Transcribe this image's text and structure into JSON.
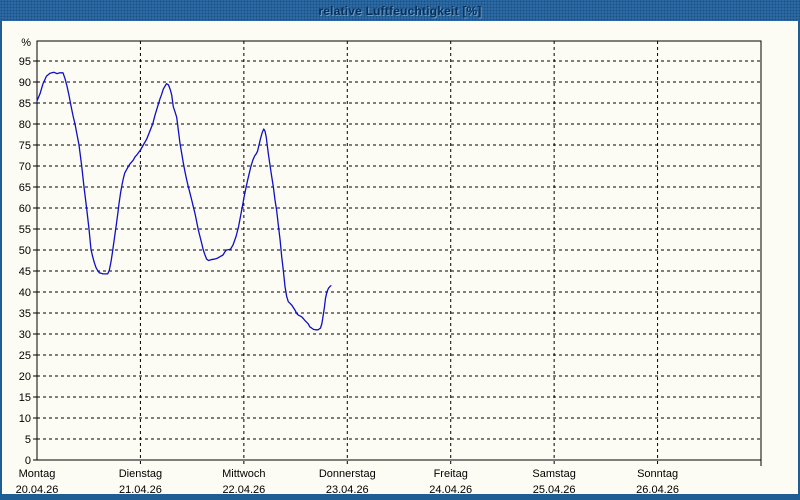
{
  "window": {
    "title": "relative Luftfeuchtigkeit [%]",
    "colors": {
      "titlebar_bg": "#2c6aa5",
      "titlebar_text": "#06305c",
      "frame": "#1e5e95",
      "content_bg": "#fcfcf4",
      "grid": "#000000",
      "axis": "#000000",
      "series_line": "#0f10c5"
    }
  },
  "chart_data": {
    "type": "line",
    "title": "relative Luftfeuchtigkeit [%]",
    "ylabel": "%",
    "grid": "dashed",
    "legend": "none",
    "y_axis": {
      "unit": "%",
      "axis_min": 0,
      "axis_max": 100,
      "tick_step": 5,
      "ticks": [
        0,
        5,
        10,
        15,
        20,
        25,
        30,
        35,
        40,
        45,
        50,
        55,
        60,
        65,
        70,
        75,
        80,
        85,
        90,
        95
      ]
    },
    "x_axis": {
      "span_days": 7,
      "days": [
        {
          "name": "Montag",
          "date": "20.04.26"
        },
        {
          "name": "Dienstag",
          "date": "21.04.26"
        },
        {
          "name": "Mittwoch",
          "date": "22.04.26"
        },
        {
          "name": "Donnerstag",
          "date": "23.04.26"
        },
        {
          "name": "Freitag",
          "date": "24.04.26"
        },
        {
          "name": "Samstag",
          "date": "25.04.26"
        },
        {
          "name": "Sonntag",
          "date": "26.04.26"
        }
      ]
    },
    "series": [
      {
        "name": "relative Luftfeuchtigkeit",
        "color": "#0f10c5",
        "x_unit": "days_since_monday",
        "points": [
          [
            0.0,
            85.5
          ],
          [
            0.029,
            87.2
          ],
          [
            0.058,
            89.6
          ],
          [
            0.092,
            91.4
          ],
          [
            0.126,
            92.1
          ],
          [
            0.164,
            92.3
          ],
          [
            0.193,
            92.0
          ],
          [
            0.222,
            92.2
          ],
          [
            0.251,
            92.2
          ],
          [
            0.271,
            90.8
          ],
          [
            0.29,
            89.0
          ],
          [
            0.309,
            86.8
          ],
          [
            0.329,
            84.3
          ],
          [
            0.348,
            82.0
          ],
          [
            0.367,
            80.0
          ],
          [
            0.387,
            77.5
          ],
          [
            0.406,
            75.0
          ],
          [
            0.432,
            70.0
          ],
          [
            0.454,
            65.0
          ],
          [
            0.48,
            60.0
          ],
          [
            0.503,
            55.0
          ],
          [
            0.522,
            50.1
          ],
          [
            0.539,
            48.4
          ],
          [
            0.554,
            47.0
          ],
          [
            0.57,
            45.8
          ],
          [
            0.587,
            45.1
          ],
          [
            0.602,
            44.6
          ],
          [
            0.638,
            44.3
          ],
          [
            0.684,
            44.3
          ],
          [
            0.699,
            45.2
          ],
          [
            0.715,
            47.2
          ],
          [
            0.728,
            49.2
          ],
          [
            0.742,
            51.6
          ],
          [
            0.754,
            53.8
          ],
          [
            0.767,
            56.0
          ],
          [
            0.78,
            58.5
          ],
          [
            0.793,
            61.0
          ],
          [
            0.807,
            63.5
          ],
          [
            0.822,
            65.5
          ],
          [
            0.834,
            67.0
          ],
          [
            0.848,
            68.3
          ],
          [
            0.867,
            69.2
          ],
          [
            0.886,
            70.0
          ],
          [
            0.899,
            70.5
          ],
          [
            0.931,
            71.4
          ],
          [
            0.948,
            72.2
          ],
          [
            0.964,
            72.6
          ],
          [
            0.981,
            73.2
          ],
          [
            1.001,
            73.8
          ],
          [
            1.028,
            75.0
          ],
          [
            1.061,
            76.4
          ],
          [
            1.093,
            78.4
          ],
          [
            1.119,
            80.0
          ],
          [
            1.141,
            82.1
          ],
          [
            1.173,
            84.7
          ],
          [
            1.189,
            86.0
          ],
          [
            1.206,
            87.1
          ],
          [
            1.221,
            88.3
          ],
          [
            1.238,
            89.0
          ],
          [
            1.252,
            89.6
          ],
          [
            1.271,
            89.3
          ],
          [
            1.291,
            88.0
          ],
          [
            1.302,
            86.9
          ],
          [
            1.318,
            84.1
          ],
          [
            1.334,
            82.9
          ],
          [
            1.351,
            81.6
          ],
          [
            1.366,
            78.6
          ],
          [
            1.383,
            75.4
          ],
          [
            1.399,
            73.0
          ],
          [
            1.415,
            70.6
          ],
          [
            1.431,
            68.6
          ],
          [
            1.447,
            66.7
          ],
          [
            1.463,
            65.1
          ],
          [
            1.479,
            63.5
          ],
          [
            1.496,
            61.9
          ],
          [
            1.511,
            60.3
          ],
          [
            1.528,
            58.7
          ],
          [
            1.544,
            56.7
          ],
          [
            1.56,
            54.8
          ],
          [
            1.576,
            53.2
          ],
          [
            1.592,
            51.6
          ],
          [
            1.608,
            50.0
          ],
          [
            1.624,
            48.8
          ],
          [
            1.641,
            47.8
          ],
          [
            1.658,
            47.5
          ],
          [
            1.682,
            47.7
          ],
          [
            1.711,
            47.8
          ],
          [
            1.74,
            48.0
          ],
          [
            1.769,
            48.4
          ],
          [
            1.798,
            48.8
          ],
          [
            1.818,
            49.6
          ],
          [
            1.832,
            50.0
          ],
          [
            1.871,
            50.2
          ],
          [
            1.895,
            51.2
          ],
          [
            1.924,
            53.2
          ],
          [
            1.948,
            55.5
          ],
          [
            1.968,
            58.0
          ],
          [
            1.987,
            60.5
          ],
          [
            2.001,
            62.5
          ],
          [
            2.018,
            64.5
          ],
          [
            2.035,
            66.5
          ],
          [
            2.055,
            68.5
          ],
          [
            2.069,
            70.0
          ],
          [
            2.088,
            71.5
          ],
          [
            2.105,
            72.4
          ],
          [
            2.117,
            72.8
          ],
          [
            2.132,
            73.5
          ],
          [
            2.146,
            75.0
          ],
          [
            2.161,
            76.5
          ],
          [
            2.175,
            77.8
          ],
          [
            2.192,
            78.8
          ],
          [
            2.204,
            78.3
          ],
          [
            2.217,
            76.8
          ],
          [
            2.224,
            75.4
          ],
          [
            2.236,
            73.0
          ],
          [
            2.253,
            70.2
          ],
          [
            2.269,
            67.5
          ],
          [
            2.285,
            65.1
          ],
          [
            2.301,
            61.9
          ],
          [
            2.317,
            59.5
          ],
          [
            2.333,
            56.0
          ],
          [
            2.35,
            52.4
          ],
          [
            2.366,
            48.4
          ],
          [
            2.381,
            45.2
          ],
          [
            2.398,
            41.3
          ],
          [
            2.414,
            38.9
          ],
          [
            2.43,
            37.7
          ],
          [
            2.446,
            37.3
          ],
          [
            2.463,
            36.9
          ],
          [
            2.494,
            35.7
          ],
          [
            2.511,
            34.9
          ],
          [
            2.526,
            34.5
          ],
          [
            2.559,
            34.1
          ],
          [
            2.575,
            33.7
          ],
          [
            2.591,
            33.2
          ],
          [
            2.623,
            32.4
          ],
          [
            2.639,
            31.7
          ],
          [
            2.656,
            31.4
          ],
          [
            2.673,
            31.1
          ],
          [
            2.693,
            31.0
          ],
          [
            2.717,
            31.0
          ],
          [
            2.741,
            31.4
          ],
          [
            2.755,
            32.5
          ],
          [
            2.77,
            34.9
          ],
          [
            2.78,
            36.5
          ],
          [
            2.789,
            38.5
          ],
          [
            2.804,
            40.1
          ],
          [
            2.818,
            40.9
          ],
          [
            2.833,
            41.3
          ],
          [
            2.842,
            41.5
          ]
        ]
      }
    ]
  }
}
